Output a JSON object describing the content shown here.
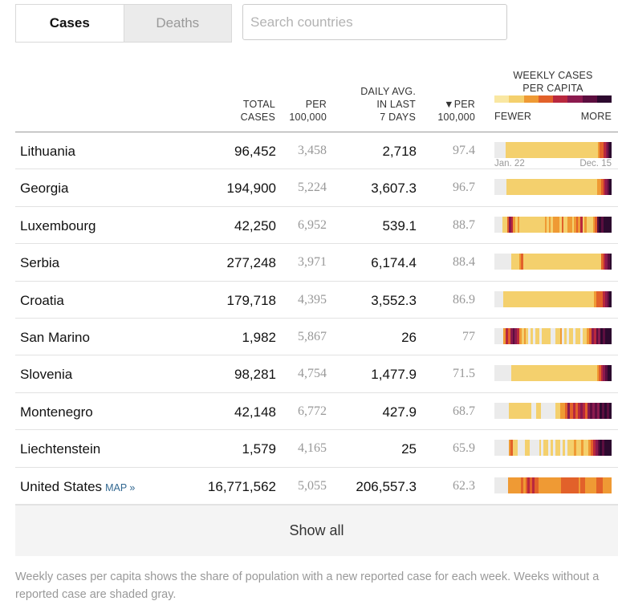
{
  "toggle": {
    "cases_label": "Cases",
    "deaths_label": "Deaths"
  },
  "search": {
    "placeholder": "Search countries"
  },
  "header": {
    "total_cases": [
      "TOTAL",
      "CASES"
    ],
    "per_100k": [
      "PER",
      "100,000"
    ],
    "daily_avg": [
      "DAILY AVG.",
      "IN LAST",
      "7 DAYS"
    ],
    "per_100k_sorted": [
      "▼PER",
      "100,000"
    ],
    "legend_title": [
      "WEEKLY CASES",
      "PER CAPITA"
    ],
    "legend_fewer": "FEWER",
    "legend_more": "MORE",
    "legend_colors": [
      "#f9e7a2",
      "#f4d06d",
      "#ef9a34",
      "#e2612a",
      "#b9283e",
      "#8b1a4e",
      "#5c0e3f",
      "#2d0a2f"
    ]
  },
  "spark_dates": {
    "start": "Jan. 22",
    "end": "Dec. 15"
  },
  "palette": {
    "gray": "#ebebeb",
    "levels": [
      "#f9e7a2",
      "#f4d06d",
      "#ef9a34",
      "#e2612a",
      "#b9283e",
      "#8b1a4e",
      "#5c0e3f",
      "#2d0a2f"
    ]
  },
  "rows": [
    {
      "country": "Lithuania",
      "total": "96,452",
      "per": "3,458",
      "avg": "2,718",
      "per2": "97.4",
      "spark": "gggggg1111111111111111111111111111111111111111111111112334567"
    },
    {
      "country": "Georgia",
      "total": "194,900",
      "per": "5,224",
      "avg": "3,607.3",
      "per2": "96.7",
      "spark": "gggggg11111111111111111111111111111111111111111111112234567"
    },
    {
      "country": "Luxembourg",
      "total": "42,250",
      "per": "6,952",
      "avg": "539.1",
      "per2": "88.7",
      "spark": "gggg1135421211111111111121212221311221232412111236767777"
    },
    {
      "country": "Serbia",
      "total": "277,248",
      "per": "3,971",
      "avg": "6,174.4",
      "per2": "88.4",
      "spark": "gggggggg1111231111111111111111111111111111111111111134567"
    },
    {
      "country": "Croatia",
      "total": "179,718",
      "per": "4,395",
      "avg": "3,552.3",
      "per2": "86.9",
      "spark": "gggg11111111111111111111111111111111111111111123334567"
    },
    {
      "country": "San Marino",
      "total": "1,982",
      "per": "5,867",
      "avg": "26",
      "per2": "77",
      "spark": "gggg24356542121g1g11g1111gg112g1g11g11g1123546576777"
    },
    {
      "country": "Slovenia",
      "total": "98,281",
      "per": "4,754",
      "avg": "1,477.9",
      "per2": "71.5",
      "spark": "gggggggg11111111111111111111111111111111111111112345677"
    },
    {
      "country": "Montenegro",
      "total": "42,148",
      "per": "6,772",
      "avg": "427.9",
      "per2": "68.7",
      "spark": "gggggg111111111gg11gggggg11223534345435656576767"
    },
    {
      "country": "Liechtenstein",
      "total": "1,579",
      "per": "4,165",
      "avg": "25",
      "per2": "65.9",
      "spark": "gggggg2311ggg11gggg1g11g1g11g1g1112112112345676777"
    },
    {
      "country": "United States",
      "map": "MAP »",
      "total": "16,771,562",
      "per": "5,055",
      "avg": "206,557.3",
      "per2": "62.3",
      "spark": "gggggg22222232343433222222222233333333233222223332222"
    }
  ],
  "show_all": "Show all",
  "footnote": "Weekly cases per capita shows the share of population with a new reported case for each week. Weeks without a reported case are shaded gray."
}
